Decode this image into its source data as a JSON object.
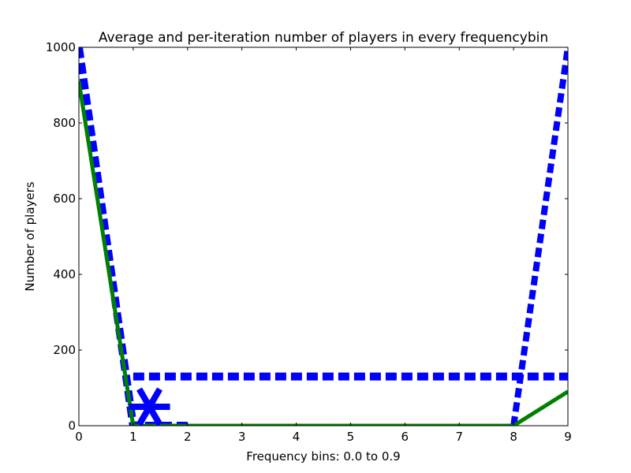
{
  "chart_data": {
    "type": "line",
    "title": "Average and per-iteration number of players in every frequencybin",
    "xlabel": "Frequency bins: 0.0 to 0.9",
    "ylabel": "Number of players",
    "xlim": [
      0,
      9
    ],
    "ylim": [
      0,
      1000
    ],
    "xticks": [
      0,
      1,
      2,
      3,
      4,
      5,
      6,
      7,
      8,
      9
    ],
    "yticks": [
      0,
      200,
      400,
      600,
      800,
      1000
    ],
    "grid": false,
    "legend": "none",
    "colors": {
      "blue": "#0000ff",
      "green": "#008000"
    },
    "series": [
      {
        "style": "dashed-thick",
        "color": "#0000ff",
        "x": [
          0,
          1,
          2
        ],
        "y": [
          1000,
          0,
          0
        ]
      },
      {
        "style": "dashed-thick",
        "color": "#0000ff",
        "x": [
          1,
          2,
          3,
          4,
          5,
          6,
          7,
          8,
          9
        ],
        "y": [
          130,
          130,
          130,
          130,
          130,
          130,
          130,
          130,
          130
        ]
      },
      {
        "style": "dotted-thick",
        "color": "#0000ff",
        "x": [
          8,
          9
        ],
        "y": [
          0,
          1000
        ]
      },
      {
        "style": "solid",
        "color": "#008000",
        "x": [
          0,
          1,
          2,
          3,
          4,
          5,
          6,
          7,
          8,
          9
        ],
        "y": [
          910,
          0,
          0,
          0,
          0,
          0,
          0,
          0,
          0,
          90
        ]
      },
      {
        "style": "star-marker",
        "color": "#0000ff",
        "x": [
          1.3
        ],
        "y": [
          50
        ]
      }
    ]
  }
}
